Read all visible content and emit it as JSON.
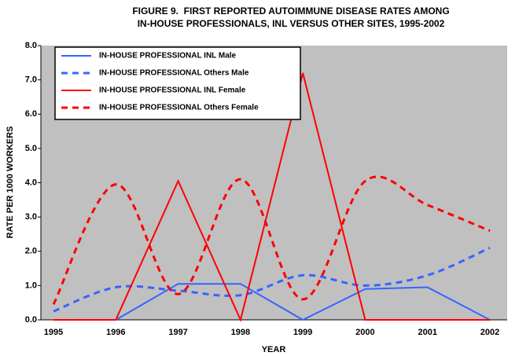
{
  "chart_data": {
    "type": "line",
    "title": [
      "FIGURE 9.  FIRST REPORTED AUTOIMMUNE DISEASE RATES AMONG",
      "IN-HOUSE PROFESSIONALS, INL VERSUS OTHER SITES, 1995-2002"
    ],
    "x_label": "YEAR",
    "y_label": "RATE PER 1000 WORKERS",
    "categories": [
      "1995",
      "1996",
      "1997",
      "1998",
      "1999",
      "2000",
      "2001",
      "2002"
    ],
    "series": [
      {
        "name": "IN-HOUSE PROFESSIONAL INL Male",
        "color": "#3366ff",
        "dashed": false,
        "smooth": false,
        "values": [
          0,
          0,
          1.05,
          1.05,
          0,
          0.9,
          0.95,
          0
        ]
      },
      {
        "name": "IN-HOUSE PROFESSIONAL Others Male",
        "color": "#3366ff",
        "dashed": true,
        "smooth": true,
        "values": [
          0.25,
          0.95,
          0.85,
          0.72,
          1.3,
          1.0,
          1.3,
          2.1
        ]
      },
      {
        "name": "IN-HOUSE PROFESSIONAL INL Female",
        "color": "#ff0000",
        "dashed": false,
        "smooth": false,
        "values": [
          0,
          0,
          4.05,
          0,
          7.2,
          0,
          0,
          0
        ]
      },
      {
        "name": "IN-HOUSE PROFESSIONAL Others Female",
        "color": "#ff0000",
        "dashed": true,
        "smooth": true,
        "values": [
          0.45,
          3.95,
          0.75,
          4.1,
          0.6,
          4.05,
          3.35,
          2.6
        ]
      }
    ],
    "ylim": [
      0,
      8
    ],
    "yticks": [
      {
        "value": 0,
        "label": "0.0"
      },
      {
        "value": 1,
        "label": "1.0"
      },
      {
        "value": 2,
        "label": "2.0"
      },
      {
        "value": 3,
        "label": "3.0"
      },
      {
        "value": 4,
        "label": "4.0"
      },
      {
        "value": 5,
        "label": "5.0"
      },
      {
        "value": 6,
        "label": "6.0"
      },
      {
        "value": 7,
        "label": "7.0"
      },
      {
        "value": 8,
        "label": "8.0"
      }
    ],
    "plot_background": "#c0c0c0",
    "legend": "upper left"
  }
}
